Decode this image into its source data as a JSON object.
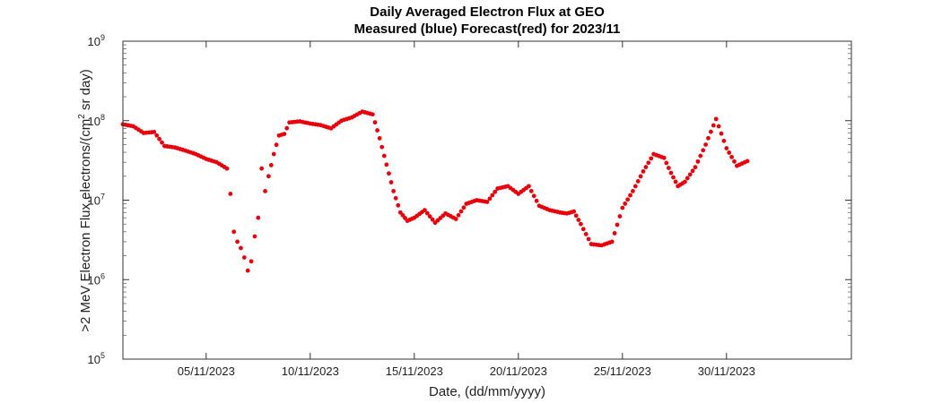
{
  "chart_data": {
    "type": "scatter",
    "title": "Daily Averaged Electron Flux at GEO",
    "subtitle": "Measured (blue) Forecast(red) for 2023/11",
    "xlabel": "Date, (dd/mm/yyyy)",
    "ylabel": {
      "prefix": ">2 MeV Electron Flux,electrons/(cm",
      "sup": "2",
      "suffix": " sr day)"
    },
    "xlim": [
      "2023-11-01",
      "2023-12-06"
    ],
    "ylim": [
      100000,
      1000000000
    ],
    "yscale": "log",
    "grid": false,
    "xticks": [
      "05/11/2023",
      "10/11/2023",
      "15/11/2023",
      "20/11/2023",
      "25/11/2023",
      "30/11/2023"
    ],
    "yticks": [
      {
        "base": "10",
        "exp": "5"
      },
      {
        "base": "10",
        "exp": "6"
      },
      {
        "base": "10",
        "exp": "7"
      },
      {
        "base": "10",
        "exp": "8"
      },
      {
        "base": "10",
        "exp": "9"
      }
    ],
    "series": [
      {
        "color": "#e8000b",
        "x": [
          "2023-11-01",
          "2023-11-01",
          "2023-11-02",
          "2023-11-02",
          "2023-11-03",
          "2023-11-03",
          "2023-11-04",
          "2023-11-04",
          "2023-11-05",
          "2023-11-05",
          "2023-11-06",
          "2023-11-06",
          "2023-11-06",
          "2023-11-06",
          "2023-11-06",
          "2023-11-06",
          "2023-11-07",
          "2023-11-07",
          "2023-11-07",
          "2023-11-07",
          "2023-11-07",
          "2023-11-07",
          "2023-11-08",
          "2023-11-08",
          "2023-11-08",
          "2023-11-08",
          "2023-11-09",
          "2023-11-09",
          "2023-11-10",
          "2023-11-10",
          "2023-11-11",
          "2023-11-11",
          "2023-11-12",
          "2023-11-12",
          "2023-11-13",
          "2023-11-13",
          "2023-11-13",
          "2023-11-14",
          "2023-11-14",
          "2023-11-14",
          "2023-11-15",
          "2023-11-15",
          "2023-11-16",
          "2023-11-16",
          "2023-11-17",
          "2023-11-17",
          "2023-11-18",
          "2023-11-18",
          "2023-11-19",
          "2023-11-19",
          "2023-11-20",
          "2023-11-20",
          "2023-11-21",
          "2023-11-21",
          "2023-11-22",
          "2023-11-22",
          "2023-11-22",
          "2023-11-23",
          "2023-11-23",
          "2023-11-24",
          "2023-11-24",
          "2023-11-25",
          "2023-11-25",
          "2023-11-26",
          "2023-11-26",
          "2023-11-27",
          "2023-11-27",
          "2023-11-27",
          "2023-11-28",
          "2023-11-28",
          "2023-11-29",
          "2023-11-29",
          "2023-11-30",
          "2023-11-30",
          "2023-12-01"
        ],
        "y": [
          90000000,
          85000000,
          70000000,
          72000000,
          48000000,
          46000000,
          42000000,
          38000000,
          33000000,
          30000000,
          25000000,
          12000000,
          4000000,
          3000000,
          2500000,
          1900000,
          1300000,
          1700000,
          3500000,
          6000000,
          25000000,
          13000000,
          20000000,
          38000000,
          65000000,
          68000000,
          95000000,
          98000000,
          92000000,
          88000000,
          80000000,
          100000000,
          110000000,
          130000000,
          120000000,
          60000000,
          28000000,
          13000000,
          7000000,
          5500000,
          6000000,
          7500000,
          5200000,
          6800000,
          5800000,
          9000000,
          10000000,
          9500000,
          14000000,
          15000000,
          12000000,
          15000000,
          8500000,
          7500000,
          7000000,
          6800000,
          7200000,
          5000000,
          2800000,
          2700000,
          3000000,
          8000000,
          13000000,
          23000000,
          38000000,
          34000000,
          22000000,
          15000000,
          17000000,
          26000000,
          50000000,
          105000000,
          45000000,
          27000000,
          31000000
        ]
      }
    ]
  }
}
